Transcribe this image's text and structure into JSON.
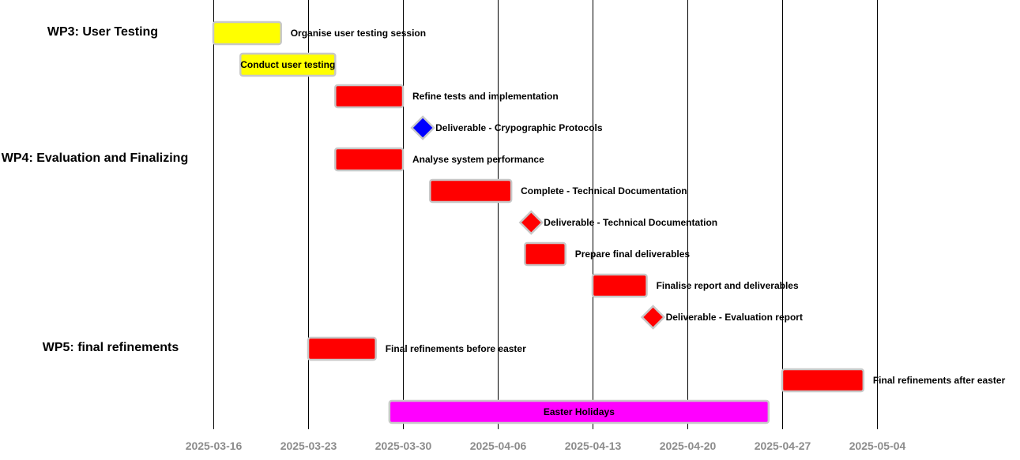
{
  "chart_data": {
    "type": "gantt",
    "x_ticks": [
      "2025-03-16",
      "2025-03-23",
      "2025-03-30",
      "2025-04-06",
      "2025-04-13",
      "2025-04-20",
      "2025-04-27",
      "2025-05-04"
    ],
    "groups": [
      {
        "label": "WP3: User Testing",
        "row": 0
      },
      {
        "label": "WP4: Evaluation and Finalizing",
        "row": 4
      },
      {
        "label": "WP5: final refinements",
        "row": 10
      }
    ],
    "tasks": [
      {
        "row": 0,
        "label": "Organise user testing session",
        "start": "2025-03-16",
        "end": "2025-03-21",
        "color": "#ffff00",
        "kind": "bar",
        "label_inside": false
      },
      {
        "row": 1,
        "label": "Conduct user testing",
        "start": "2025-03-18",
        "end": "2025-03-25",
        "color": "#ffff00",
        "kind": "bar",
        "label_inside": true
      },
      {
        "row": 2,
        "label": "Refine tests and implementation",
        "start": "2025-03-25",
        "end": "2025-03-30",
        "color": "#ff0000",
        "kind": "bar",
        "label_inside": false
      },
      {
        "row": 3,
        "label": "Deliverable - Crypographic Protocols",
        "date": "2025-03-31",
        "color": "#0000ff",
        "kind": "milestone"
      },
      {
        "row": 4,
        "label": "Analyse system performance",
        "start": "2025-03-25",
        "end": "2025-03-30",
        "color": "#ff0000",
        "kind": "bar",
        "label_inside": false
      },
      {
        "row": 5,
        "label": "Complete - Technical Documentation",
        "start": "2025-04-01",
        "end": "2025-04-07",
        "color": "#ff0000",
        "kind": "bar",
        "label_inside": false
      },
      {
        "row": 6,
        "label": "Deliverable - Technical Documentation",
        "date": "2025-04-08",
        "color": "#ff0000",
        "kind": "milestone"
      },
      {
        "row": 7,
        "label": "Prepare final deliverables",
        "start": "2025-04-08",
        "end": "2025-04-11",
        "color": "#ff0000",
        "kind": "bar",
        "label_inside": false
      },
      {
        "row": 8,
        "label": "Finalise report and deliverables",
        "start": "2025-04-13",
        "end": "2025-04-17",
        "color": "#ff0000",
        "kind": "bar",
        "label_inside": false
      },
      {
        "row": 9,
        "label": "Deliverable - Evaluation report",
        "date": "2025-04-17",
        "color": "#ff0000",
        "kind": "milestone"
      },
      {
        "row": 10,
        "label": "Final refinements before easter",
        "start": "2025-03-23",
        "end": "2025-03-28",
        "color": "#ff0000",
        "kind": "bar",
        "label_inside": false
      },
      {
        "row": 11,
        "label": "Final refinements after easter",
        "start": "2025-04-27",
        "end": "2025-05-03",
        "color": "#ff0000",
        "kind": "bar",
        "label_inside": false
      },
      {
        "row": 12,
        "label": "Easter Holidays",
        "start": "2025-03-29",
        "end": "2025-04-26",
        "color": "#ff00ff",
        "kind": "bar",
        "label_inside": true
      }
    ],
    "grid": true
  }
}
